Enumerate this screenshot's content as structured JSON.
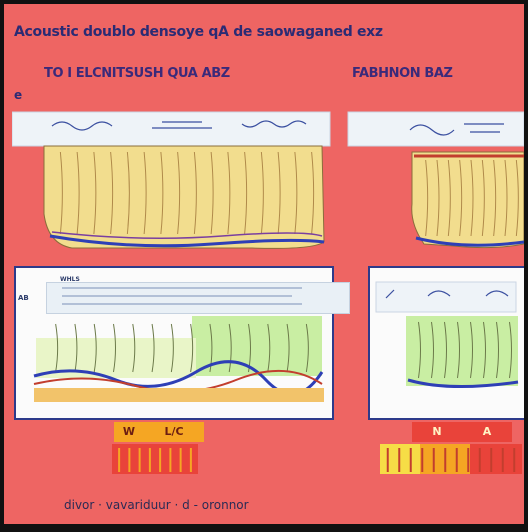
{
  "title": "Acoustic doublo densoye qA de saowaganed exz",
  "left_title": "TO I ELCNITSUSH QUA ABZ",
  "right_title": "FABHNON BAZ",
  "left_marker": "e",
  "panel_heading": "WHLS",
  "panel_label_ab": "AB",
  "legend_left": [
    "W",
    "L/C"
  ],
  "legend_right": [
    "N",
    "A"
  ],
  "footer": "divor · vavariduur · d - oronnor",
  "colors": {
    "background": "#ee6563",
    "layer_yellow": "#f2dd8e",
    "layer_green": "#c9eea3",
    "line_blue": "#2e3fb6",
    "legend_red": "#e9433a",
    "legend_orange": "#f5a623",
    "legend_yellow": "#f6dd46"
  }
}
